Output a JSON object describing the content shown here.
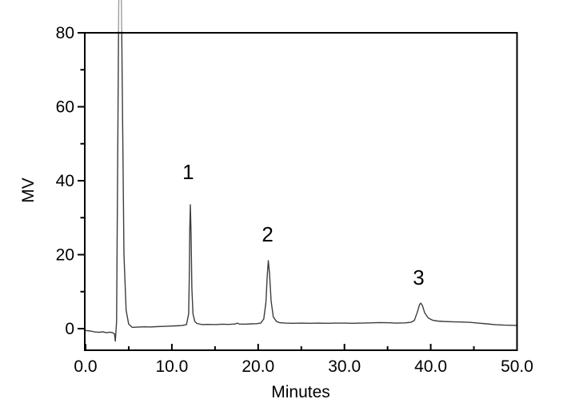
{
  "figure": {
    "background": "#ffffff"
  },
  "chart_data": {
    "type": "line",
    "title": "",
    "xlabel": "Minutes",
    "ylabel": "MV",
    "x_range": [
      0,
      50
    ],
    "y_range": [
      -5.8,
      80
    ],
    "x_major_ticks": [
      0,
      10,
      20,
      30,
      40,
      50
    ],
    "x_major_tick_labels": [
      "0.0",
      "10.0",
      "20.0",
      "30.0",
      "40.0",
      "50.0"
    ],
    "x_minor_ticks": [
      5,
      15,
      25,
      35,
      45
    ],
    "y_major_ticks": [
      0,
      20,
      40,
      60,
      80
    ],
    "y_major_tick_labels": [
      "0",
      "20",
      "40",
      "60",
      "80"
    ],
    "y_minor_ticks": [
      10,
      30,
      50,
      70
    ],
    "grid": false,
    "legend": false,
    "axis_color": "#000000",
    "line_color": "#3d3d3d",
    "peaks": [
      {
        "label": "1",
        "retention_min": 12.1,
        "height_mv": 33.5,
        "label_pos": {
          "t": 11.9,
          "mv": 42.4
        }
      },
      {
        "label": "2",
        "retention_min": 21.2,
        "height_mv": 18.4,
        "label_pos": {
          "t": 21.1,
          "mv": 25.5
        }
      },
      {
        "label": "3",
        "retention_min": 38.8,
        "height_mv": 6.9,
        "label_pos": {
          "t": 38.6,
          "mv": 13.8
        }
      }
    ],
    "trace": [
      [
        0,
        -0.5
      ],
      [
        0.6,
        -0.65
      ],
      [
        1.1,
        -0.9
      ],
      [
        1.6,
        -1.0
      ],
      [
        2.0,
        -0.85
      ],
      [
        2.4,
        -1.1
      ],
      [
        2.8,
        -0.95
      ],
      [
        3.1,
        -1.05
      ],
      [
        3.35,
        -1.4
      ],
      [
        3.45,
        -3.4
      ],
      [
        3.6,
        2
      ],
      [
        3.85,
        89
      ],
      [
        4.15,
        89
      ],
      [
        4.45,
        20
      ],
      [
        4.7,
        5
      ],
      [
        5.0,
        1.2
      ],
      [
        5.4,
        0.35
      ],
      [
        6,
        0.4
      ],
      [
        6.8,
        0.5
      ],
      [
        7.5,
        0.45
      ],
      [
        8.2,
        0.55
      ],
      [
        9,
        0.6
      ],
      [
        9.8,
        0.7
      ],
      [
        10.5,
        0.75
      ],
      [
        11.2,
        0.85
      ],
      [
        11.7,
        1.1
      ],
      [
        11.95,
        4
      ],
      [
        12.02,
        14
      ],
      [
        12.08,
        27
      ],
      [
        12.14,
        33.5
      ],
      [
        12.22,
        26
      ],
      [
        12.32,
        11
      ],
      [
        12.45,
        4
      ],
      [
        12.65,
        2
      ],
      [
        12.9,
        1.4
      ],
      [
        13.5,
        1.1
      ],
      [
        14.2,
        1.15
      ],
      [
        15,
        1.1
      ],
      [
        15.8,
        1.2
      ],
      [
        16.6,
        1.15
      ],
      [
        17.3,
        1.25
      ],
      [
        17.6,
        1.5
      ],
      [
        17.8,
        1.25
      ],
      [
        18.5,
        1.2
      ],
      [
        19.2,
        1.3
      ],
      [
        19.8,
        1.35
      ],
      [
        20.3,
        1.5
      ],
      [
        20.65,
        2.6
      ],
      [
        20.9,
        7
      ],
      [
        21.05,
        14
      ],
      [
        21.18,
        18.4
      ],
      [
        21.32,
        15
      ],
      [
        21.5,
        7.5
      ],
      [
        21.75,
        3.2
      ],
      [
        22.1,
        2.0
      ],
      [
        22.5,
        1.6
      ],
      [
        23.2,
        1.5
      ],
      [
        24,
        1.45
      ],
      [
        25,
        1.5
      ],
      [
        26,
        1.45
      ],
      [
        27,
        1.5
      ],
      [
        28,
        1.45
      ],
      [
        29,
        1.5
      ],
      [
        30,
        1.5
      ],
      [
        31,
        1.45
      ],
      [
        32,
        1.5
      ],
      [
        33,
        1.55
      ],
      [
        34,
        1.65
      ],
      [
        35,
        1.6
      ],
      [
        36,
        1.5
      ],
      [
        37,
        1.55
      ],
      [
        37.7,
        1.7
      ],
      [
        38.1,
        2.2
      ],
      [
        38.45,
        4.5
      ],
      [
        38.7,
        6.5
      ],
      [
        38.85,
        6.9
      ],
      [
        39.05,
        6.2
      ],
      [
        39.3,
        4.3
      ],
      [
        39.7,
        2.9
      ],
      [
        40.2,
        2.3
      ],
      [
        40.8,
        2.05
      ],
      [
        41.5,
        1.95
      ],
      [
        42.5,
        1.85
      ],
      [
        43.5,
        1.8
      ],
      [
        44.5,
        1.7
      ],
      [
        45.5,
        1.5
      ],
      [
        46.5,
        1.3
      ],
      [
        47.5,
        1.05
      ],
      [
        48.5,
        0.95
      ],
      [
        49.3,
        0.9
      ],
      [
        50,
        0.88
      ]
    ]
  }
}
